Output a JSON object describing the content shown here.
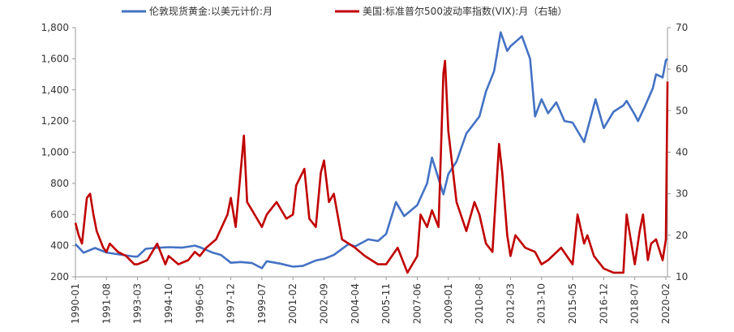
{
  "chart_data": {
    "type": "line",
    "x_ticks": [
      "1990-01",
      "1991-08",
      "1993-03",
      "1994-10",
      "1996-05",
      "1997-12",
      "1999-07",
      "2001-02",
      "2002-09",
      "2004-04",
      "2005-11",
      "2007-06",
      "2009-01",
      "2010-08",
      "2012-03",
      "2013-10",
      "2015-05",
      "2016-12",
      "2018-07",
      "2020-02"
    ],
    "left_axis": {
      "ylim": [
        200,
        1800
      ],
      "ticks": [
        "200",
        "400",
        "600",
        "800",
        "1,000",
        "1,200",
        "1,400",
        "1,600",
        "1,800"
      ]
    },
    "right_axis": {
      "ylim": [
        10,
        70
      ],
      "ticks": [
        "10",
        "20",
        "30",
        "40",
        "50",
        "60",
        "70"
      ]
    },
    "legend_placement": "top",
    "grid": false,
    "series": [
      {
        "name": "伦敦现货黄金:以美元计价:月",
        "axis": "left",
        "color": "#4472C4",
        "points": [
          [
            "1990-01",
            410
          ],
          [
            "1990-06",
            355
          ],
          [
            "1991-01",
            385
          ],
          [
            "1991-08",
            356
          ],
          [
            "1992-06",
            340
          ],
          [
            "1993-01",
            330
          ],
          [
            "1993-03",
            330
          ],
          [
            "1993-08",
            380
          ],
          [
            "1994-01",
            385
          ],
          [
            "1994-10",
            390
          ],
          [
            "1995-06",
            387
          ],
          [
            "1996-02",
            400
          ],
          [
            "1996-05",
            390
          ],
          [
            "1997-01",
            355
          ],
          [
            "1997-06",
            340
          ],
          [
            "1997-12",
            290
          ],
          [
            "1998-06",
            295
          ],
          [
            "1999-01",
            288
          ],
          [
            "1999-07",
            255
          ],
          [
            "1999-10",
            300
          ],
          [
            "2000-06",
            285
          ],
          [
            "2001-02",
            265
          ],
          [
            "2001-08",
            270
          ],
          [
            "2002-04",
            305
          ],
          [
            "2002-09",
            315
          ],
          [
            "2003-03",
            340
          ],
          [
            "2003-12",
            410
          ],
          [
            "2004-04",
            395
          ],
          [
            "2004-12",
            440
          ],
          [
            "2005-06",
            430
          ],
          [
            "2005-11",
            475
          ],
          [
            "2006-05",
            680
          ],
          [
            "2006-10",
            590
          ],
          [
            "2007-06",
            660
          ],
          [
            "2007-12",
            800
          ],
          [
            "2008-03",
            965
          ],
          [
            "2008-10",
            730
          ],
          [
            "2009-01",
            860
          ],
          [
            "2009-06",
            940
          ],
          [
            "2009-12",
            1120
          ],
          [
            "2010-08",
            1230
          ],
          [
            "2010-12",
            1390
          ],
          [
            "2011-05",
            1520
          ],
          [
            "2011-09",
            1770
          ],
          [
            "2012-01",
            1650
          ],
          [
            "2012-03",
            1680
          ],
          [
            "2012-10",
            1745
          ],
          [
            "2013-03",
            1600
          ],
          [
            "2013-06",
            1230
          ],
          [
            "2013-10",
            1340
          ],
          [
            "2014-02",
            1250
          ],
          [
            "2014-07",
            1320
          ],
          [
            "2014-12",
            1200
          ],
          [
            "2015-05",
            1190
          ],
          [
            "2015-12",
            1065
          ],
          [
            "2016-07",
            1340
          ],
          [
            "2016-12",
            1155
          ],
          [
            "2017-06",
            1260
          ],
          [
            "2017-12",
            1300
          ],
          [
            "2018-02",
            1330
          ],
          [
            "2018-07",
            1240
          ],
          [
            "2018-09",
            1200
          ],
          [
            "2019-01",
            1290
          ],
          [
            "2019-06",
            1410
          ],
          [
            "2019-08",
            1500
          ],
          [
            "2019-12",
            1480
          ],
          [
            "2020-02",
            1590
          ],
          [
            "2020-03",
            1600
          ]
        ]
      },
      {
        "name": "美国:标准普尔500波动率指数(VIX):月（右轴）",
        "axis": "right",
        "color": "#C00000",
        "points": [
          [
            "1990-01",
            23
          ],
          [
            "1990-03",
            20
          ],
          [
            "1990-05",
            18
          ],
          [
            "1990-08",
            29
          ],
          [
            "1990-10",
            30
          ],
          [
            "1990-12",
            25
          ],
          [
            "1991-02",
            21
          ],
          [
            "1991-06",
            17
          ],
          [
            "1991-08",
            16
          ],
          [
            "1991-10",
            18
          ],
          [
            "1992-03",
            16
          ],
          [
            "1992-08",
            15
          ],
          [
            "1993-01",
            13
          ],
          [
            "1993-03",
            13
          ],
          [
            "1993-09",
            14
          ],
          [
            "1994-03",
            18
          ],
          [
            "1994-08",
            13
          ],
          [
            "1994-10",
            15
          ],
          [
            "1995-04",
            13
          ],
          [
            "1995-10",
            14
          ],
          [
            "1996-02",
            16
          ],
          [
            "1996-05",
            15
          ],
          [
            "1996-09",
            17
          ],
          [
            "1997-03",
            19
          ],
          [
            "1997-10",
            25
          ],
          [
            "1997-12",
            29
          ],
          [
            "1998-03",
            22
          ],
          [
            "1998-08",
            44
          ],
          [
            "1998-10",
            28
          ],
          [
            "1999-01",
            26
          ],
          [
            "1999-07",
            22
          ],
          [
            "1999-10",
            25
          ],
          [
            "2000-04",
            28
          ],
          [
            "2000-10",
            24
          ],
          [
            "2001-02",
            25
          ],
          [
            "2001-04",
            32
          ],
          [
            "2001-09",
            36
          ],
          [
            "2001-12",
            24
          ],
          [
            "2002-04",
            22
          ],
          [
            "2002-07",
            35
          ],
          [
            "2002-09",
            38
          ],
          [
            "2002-12",
            28
          ],
          [
            "2003-03",
            30
          ],
          [
            "2003-08",
            19
          ],
          [
            "2004-04",
            17
          ],
          [
            "2004-10",
            15
          ],
          [
            "2005-06",
            13
          ],
          [
            "2005-11",
            13
          ],
          [
            "2006-06",
            17
          ],
          [
            "2006-12",
            11
          ],
          [
            "2007-06",
            15
          ],
          [
            "2007-08",
            25
          ],
          [
            "2007-12",
            22
          ],
          [
            "2008-03",
            26
          ],
          [
            "2008-07",
            22
          ],
          [
            "2008-10",
            59
          ],
          [
            "2008-11",
            62
          ],
          [
            "2009-01",
            45
          ],
          [
            "2009-06",
            28
          ],
          [
            "2009-12",
            21
          ],
          [
            "2010-05",
            28
          ],
          [
            "2010-08",
            25
          ],
          [
            "2010-12",
            18
          ],
          [
            "2011-04",
            16
          ],
          [
            "2011-08",
            42
          ],
          [
            "2011-10",
            35
          ],
          [
            "2012-01",
            20
          ],
          [
            "2012-03",
            15
          ],
          [
            "2012-06",
            20
          ],
          [
            "2012-12",
            17
          ],
          [
            "2013-06",
            16
          ],
          [
            "2013-10",
            13
          ],
          [
            "2014-02",
            14
          ],
          [
            "2014-10",
            17
          ],
          [
            "2015-05",
            13
          ],
          [
            "2015-08",
            25
          ],
          [
            "2015-12",
            18
          ],
          [
            "2016-02",
            20
          ],
          [
            "2016-06",
            15
          ],
          [
            "2016-12",
            12
          ],
          [
            "2017-06",
            11
          ],
          [
            "2017-12",
            11
          ],
          [
            "2018-02",
            25
          ],
          [
            "2018-07",
            13
          ],
          [
            "2018-10",
            21
          ],
          [
            "2018-12",
            25
          ],
          [
            "2019-03",
            14
          ],
          [
            "2019-05",
            18
          ],
          [
            "2019-08",
            19
          ],
          [
            "2019-12",
            14
          ],
          [
            "2020-02",
            19
          ],
          [
            "2020-03",
            57
          ]
        ]
      }
    ]
  },
  "colors": {
    "gold": "#4472C4",
    "vix": "#C00000",
    "axis": "#999999",
    "text": "#333333"
  }
}
